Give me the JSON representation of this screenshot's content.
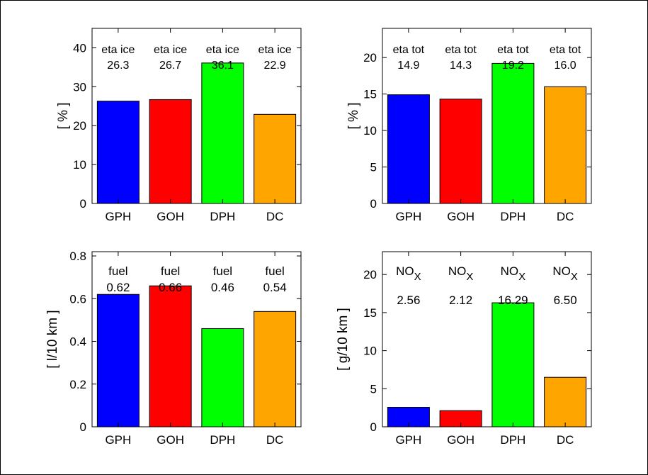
{
  "chart_data": [
    {
      "type": "bar",
      "categories": [
        "GPH",
        "GOH",
        "DPH",
        "DC"
      ],
      "values": [
        26.3,
        26.7,
        36.1,
        22.9
      ],
      "bar_labels": [
        "eta ice",
        "eta ice",
        "eta ice",
        "eta ice"
      ],
      "value_labels": [
        "26.3",
        "26.7",
        "36.1",
        "22.9"
      ],
      "ylabel": "[ % ]",
      "ylim": [
        0,
        45
      ],
      "yticks": [
        0,
        10,
        20,
        30,
        40
      ],
      "colors": [
        "#0000ff",
        "#ff0000",
        "#00ff00",
        "#ffa500"
      ],
      "grid": false
    },
    {
      "type": "bar",
      "categories": [
        "GPH",
        "GOH",
        "DPH",
        "DC"
      ],
      "values": [
        14.9,
        14.3,
        19.2,
        16.0
      ],
      "bar_labels": [
        "eta tot",
        "eta tot",
        "eta tot",
        "eta tot"
      ],
      "value_labels": [
        "14.9",
        "14.3",
        "19.2",
        "16.0"
      ],
      "ylabel": "[ % ]",
      "ylim": [
        0,
        24
      ],
      "yticks": [
        0,
        5,
        10,
        15,
        20
      ],
      "colors": [
        "#0000ff",
        "#ff0000",
        "#00ff00",
        "#ffa500"
      ],
      "grid": false
    },
    {
      "type": "bar",
      "categories": [
        "GPH",
        "GOH",
        "DPH",
        "DC"
      ],
      "values": [
        0.62,
        0.66,
        0.46,
        0.54
      ],
      "bar_labels": [
        "fuel",
        "fuel",
        "fuel",
        "fuel"
      ],
      "value_labels": [
        "0.62",
        "0.66",
        "0.46",
        "0.54"
      ],
      "ylabel": "[ l/10 km ]",
      "ylim": [
        0,
        0.82
      ],
      "yticks": [
        0,
        0.2,
        0.4,
        0.6,
        0.8
      ],
      "colors": [
        "#0000ff",
        "#ff0000",
        "#00ff00",
        "#ffa500"
      ],
      "grid": false
    },
    {
      "type": "bar",
      "categories": [
        "GPH",
        "GOH",
        "DPH",
        "DC"
      ],
      "values": [
        2.56,
        2.12,
        16.29,
        6.5
      ],
      "bar_labels": [
        "NO",
        "NO",
        "NO",
        "NO"
      ],
      "bar_label_subscript": "X",
      "value_labels": [
        "2.56",
        "2.12",
        "16.29",
        "6.50"
      ],
      "ylabel": "[ g/10 km ]",
      "ylim": [
        0,
        23
      ],
      "yticks": [
        0,
        5,
        10,
        15,
        20
      ],
      "colors": [
        "#0000ff",
        "#ff0000",
        "#00ff00",
        "#ffa500"
      ],
      "grid": false
    }
  ]
}
